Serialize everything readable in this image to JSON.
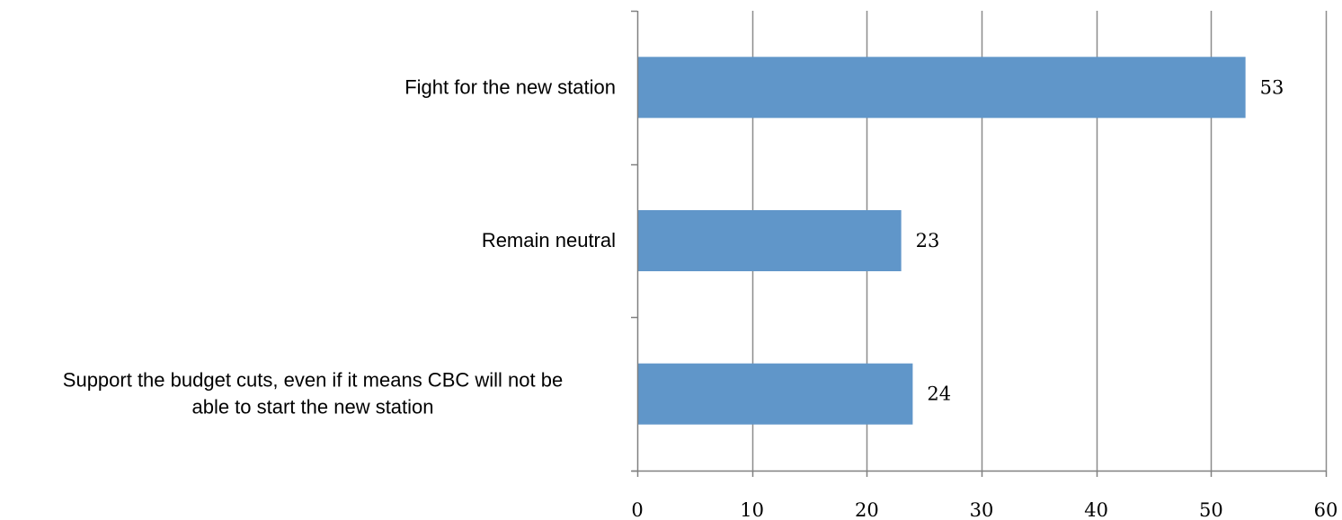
{
  "chart_data": {
    "type": "bar",
    "orientation": "horizontal",
    "categories": [
      "Fight for the new station",
      "Remain neutral",
      "Support the budget cuts, even if it means CBC will not be able to start the new station"
    ],
    "category_lines": [
      [
        "Fight for the new station"
      ],
      [
        "Remain neutral"
      ],
      [
        "Support the budget cuts, even if it means CBC will not be",
        "able to start the new station"
      ]
    ],
    "values": [
      53,
      23,
      24
    ],
    "data_labels": [
      "53",
      "23",
      "24"
    ],
    "xlim": [
      0,
      60
    ],
    "xticks": [
      0,
      10,
      20,
      30,
      40,
      50,
      60
    ],
    "xtick_labels": [
      "0",
      "10",
      "20",
      "30",
      "40",
      "50",
      "60"
    ],
    "grid": "vertical",
    "legend": "none",
    "title": "",
    "xlabel": "",
    "ylabel": "",
    "colors": {
      "bar": "#6096C9",
      "grid": "#8C8C8C",
      "axis": "#808080"
    }
  }
}
